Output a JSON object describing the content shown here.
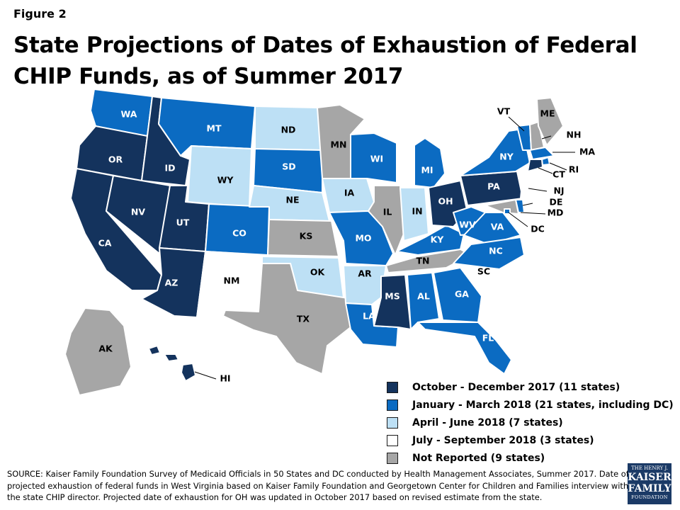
{
  "figure_label": "Figure 2",
  "title": "State Projections of Dates of Exhaustion of Federal CHIP Funds, as of Summer 2017",
  "colors": {
    "q4_2017": "#14335d",
    "q1_2018": "#0b6bc2",
    "q2_2018": "#bde0f5",
    "q3_2018": "#ffffff",
    "not_reported": "#a6a6a6",
    "outline": "#1a1a1a"
  },
  "legend": [
    {
      "key": "q4_2017",
      "label": "October - December 2017 (11 states)"
    },
    {
      "key": "q1_2018",
      "label": "January - March 2018 (21 states, including DC)"
    },
    {
      "key": "q2_2018",
      "label": "April -  June 2018 (7 states)"
    },
    {
      "key": "q3_2018",
      "label": "July - September 2018 (3 states)"
    },
    {
      "key": "not_reported",
      "label": "Not Reported (9 states)"
    }
  ],
  "states": {
    "WA": "q1_2018",
    "OR": "q4_2017",
    "CA": "q4_2017",
    "ID": "q4_2017",
    "NV": "q4_2017",
    "UT": "q4_2017",
    "AZ": "q4_2017",
    "MT": "q1_2018",
    "WY": "q2_2018",
    "CO": "q1_2018",
    "NM": "q3_2018",
    "ND": "q2_2018",
    "SD": "q1_2018",
    "NE": "q2_2018",
    "KS": "not_reported",
    "OK": "q2_2018",
    "TX": "not_reported",
    "MN": "not_reported",
    "IA": "q2_2018",
    "MO": "q1_2018",
    "AR": "q2_2018",
    "LA": "q1_2018",
    "WI": "q1_2018",
    "IL": "not_reported",
    "MS": "q4_2017",
    "MI": "q1_2018",
    "IN": "q2_2018",
    "KY": "q1_2018",
    "TN": "not_reported",
    "AL": "q1_2018",
    "OH": "q4_2017",
    "WV": "q1_2018",
    "GA": "q1_2018",
    "FL": "q1_2018",
    "SC": "q3_2018",
    "NC": "q1_2018",
    "VA": "q1_2018",
    "PA": "q4_2017",
    "NY": "q1_2018",
    "VT": "q1_2018",
    "NH": "not_reported",
    "ME": "not_reported",
    "MA": "q1_2018",
    "RI": "q1_2018",
    "CT": "q4_2017",
    "NJ": "q3_2018",
    "DE": "q1_2018",
    "MD": "not_reported",
    "DC": "q1_2018",
    "AK": "not_reported",
    "HI": "q4_2017"
  },
  "source_text": "SOURCE: Kaiser Family Foundation Survey of Medicaid Officials in 50 States and DC conducted by Health Management Associates, Summer 2017. Date of projected exhaustion of federal funds in West Virginia based on Kaiser Family Foundation and Georgetown Center for Children and Families interview with the state CHIP director. Projected date of exhaustion for OH was updated in October 2017 based on revised estimate from the state.",
  "logo": {
    "line1": "THE HENRY J.",
    "line2": "KAISER",
    "line3": "FAMILY",
    "line4": "FOUNDATION"
  }
}
